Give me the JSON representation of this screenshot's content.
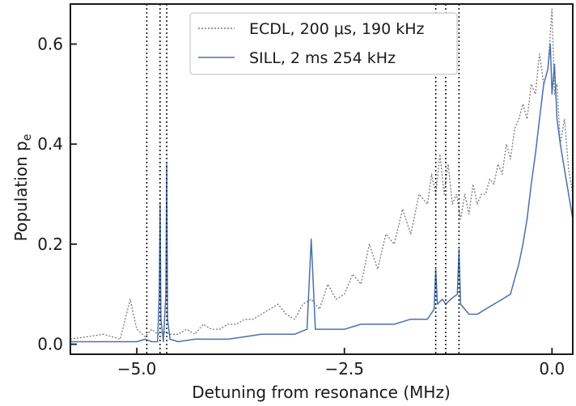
{
  "chart_data": {
    "type": "line",
    "xlabel": "Detuning from resonance (MHz)",
    "ylabel_main": "Population p",
    "ylabel_sub": "e",
    "xlim": [
      -5.8,
      0.25
    ],
    "ylim": [
      -0.02,
      0.68
    ],
    "xticks": [
      -5.0,
      -2.5,
      0.0
    ],
    "xtick_labels": [
      "−5.0",
      "−2.5",
      "0.0"
    ],
    "yticks": [
      0.0,
      0.2,
      0.4,
      0.6
    ],
    "ytick_labels": [
      "0.0",
      "0.2",
      "0.4",
      "0.6"
    ],
    "grid": false,
    "legend_position": "top-center",
    "vlines": [
      -4.88,
      -4.72,
      -4.64,
      -1.4,
      -1.28,
      -1.12
    ],
    "series": [
      {
        "name": "ECDL, 200 μs, 190 kHz",
        "style": "dotted",
        "color": "#7a7a7a",
        "x": [
          -5.8,
          -5.6,
          -5.4,
          -5.2,
          -5.08,
          -5.0,
          -4.9,
          -4.82,
          -4.75,
          -4.68,
          -4.6,
          -4.5,
          -4.4,
          -4.3,
          -4.2,
          -4.1,
          -4.0,
          -3.9,
          -3.8,
          -3.7,
          -3.6,
          -3.5,
          -3.4,
          -3.3,
          -3.2,
          -3.1,
          -3.0,
          -2.9,
          -2.8,
          -2.7,
          -2.6,
          -2.5,
          -2.4,
          -2.3,
          -2.2,
          -2.1,
          -2.0,
          -1.9,
          -1.8,
          -1.7,
          -1.6,
          -1.5,
          -1.45,
          -1.4,
          -1.35,
          -1.3,
          -1.25,
          -1.2,
          -1.15,
          -1.1,
          -1.05,
          -1.0,
          -0.95,
          -0.9,
          -0.85,
          -0.8,
          -0.75,
          -0.7,
          -0.65,
          -0.6,
          -0.55,
          -0.5,
          -0.45,
          -0.4,
          -0.35,
          -0.3,
          -0.25,
          -0.2,
          -0.15,
          -0.1,
          -0.05,
          0.0,
          0.03,
          0.06,
          0.1,
          0.15,
          0.2,
          0.25
        ],
        "values": [
          0.01,
          0.015,
          0.02,
          0.01,
          0.09,
          0.03,
          0.015,
          0.03,
          0.02,
          0.025,
          0.02,
          0.02,
          0.03,
          0.02,
          0.04,
          0.03,
          0.03,
          0.04,
          0.04,
          0.05,
          0.05,
          0.06,
          0.07,
          0.08,
          0.06,
          0.05,
          0.08,
          0.09,
          0.07,
          0.12,
          0.09,
          0.1,
          0.14,
          0.12,
          0.2,
          0.15,
          0.22,
          0.2,
          0.27,
          0.22,
          0.3,
          0.28,
          0.34,
          0.3,
          0.38,
          0.3,
          0.36,
          0.28,
          0.3,
          0.25,
          0.3,
          0.26,
          0.32,
          0.28,
          0.3,
          0.3,
          0.33,
          0.32,
          0.36,
          0.34,
          0.4,
          0.37,
          0.43,
          0.45,
          0.48,
          0.45,
          0.52,
          0.5,
          0.58,
          0.52,
          0.55,
          0.67,
          0.5,
          0.52,
          0.4,
          0.45,
          0.35,
          0.3
        ]
      },
      {
        "name": "SILL, 2 ms  254 kHz",
        "style": "solid",
        "color": "#4a70b0",
        "x": [
          -5.8,
          -5.6,
          -5.4,
          -5.2,
          -5.0,
          -4.9,
          -4.82,
          -4.75,
          -4.73,
          -4.72,
          -4.71,
          -4.68,
          -4.65,
          -4.64,
          -4.63,
          -4.6,
          -4.5,
          -4.3,
          -4.1,
          -3.9,
          -3.7,
          -3.5,
          -3.3,
          -3.1,
          -2.95,
          -2.9,
          -2.85,
          -2.7,
          -2.5,
          -2.3,
          -2.1,
          -1.9,
          -1.7,
          -1.5,
          -1.42,
          -1.4,
          -1.38,
          -1.32,
          -1.28,
          -1.22,
          -1.14,
          -1.12,
          -1.1,
          -1.0,
          -0.9,
          -0.8,
          -0.7,
          -0.6,
          -0.5,
          -0.45,
          -0.4,
          -0.35,
          -0.3,
          -0.25,
          -0.2,
          -0.15,
          -0.1,
          -0.05,
          -0.02,
          0.0,
          0.03,
          0.06,
          0.1,
          0.15,
          0.2,
          0.25
        ],
        "values": [
          0.005,
          0.005,
          0.005,
          0.005,
          0.005,
          0.01,
          0.005,
          0.005,
          0.1,
          0.28,
          0.05,
          0.005,
          0.1,
          0.36,
          0.05,
          0.01,
          0.005,
          0.01,
          0.01,
          0.01,
          0.015,
          0.02,
          0.02,
          0.02,
          0.03,
          0.21,
          0.03,
          0.03,
          0.03,
          0.04,
          0.04,
          0.04,
          0.05,
          0.05,
          0.07,
          0.15,
          0.08,
          0.09,
          0.08,
          0.09,
          0.1,
          0.19,
          0.08,
          0.06,
          0.06,
          0.07,
          0.08,
          0.09,
          0.1,
          0.13,
          0.16,
          0.2,
          0.25,
          0.32,
          0.38,
          0.45,
          0.52,
          0.55,
          0.6,
          0.5,
          0.56,
          0.45,
          0.4,
          0.35,
          0.3,
          0.25
        ]
      }
    ]
  }
}
